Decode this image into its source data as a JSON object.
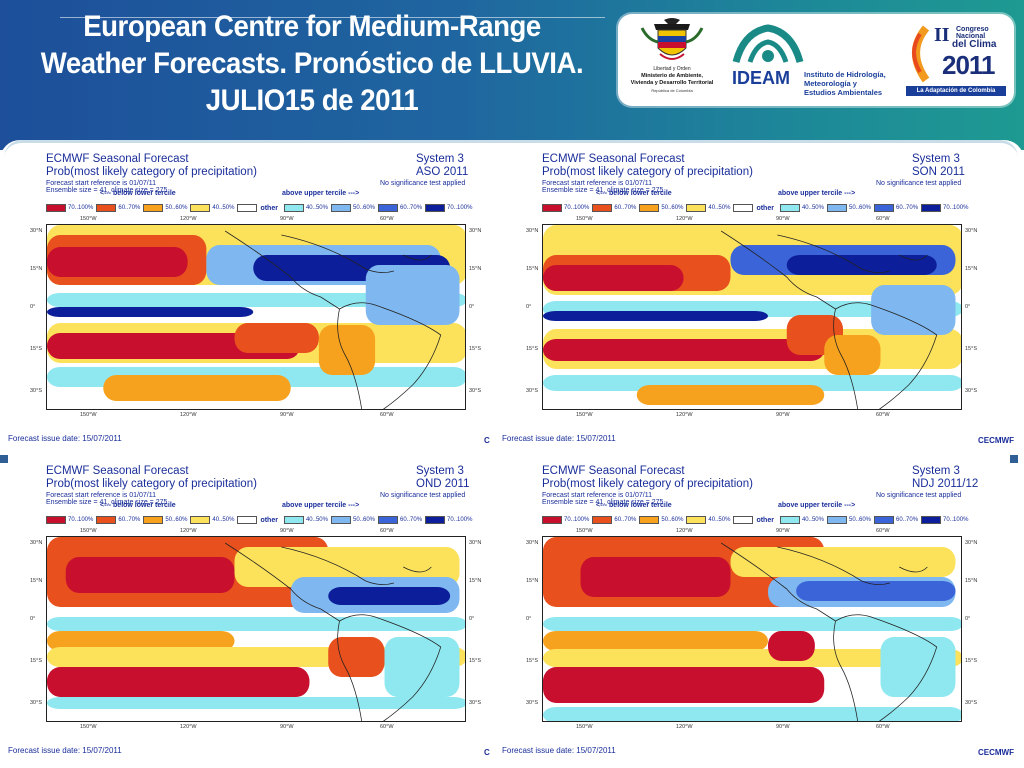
{
  "header": {
    "title_lines": [
      "European Centre for Medium-Range",
      "Weather Forecasts. Pronóstico de LLUVIA.",
      "JULIO15 de 2011"
    ]
  },
  "logos": {
    "colombia_caption_1": "Libertad y Orden",
    "colombia_caption_2": "Ministerio de Ambiente,",
    "colombia_caption_3": "Vivienda y Desarrollo Territorial",
    "colombia_caption_4": "República de Colombia",
    "ideam_name": "IDEAM",
    "ideam_sub_1": "Instituto de Hidrología,",
    "ideam_sub_2": "Meteorología y",
    "ideam_sub_3": "Estudios Ambientales",
    "congreso_roman": "II",
    "congreso_1": "Congreso",
    "congreso_2": "Nacional",
    "congreso_3": "del Clima",
    "congreso_year": "2011",
    "congreso_tag": "La Adaptación de Colombia"
  },
  "panels": [
    {
      "title": "ECMWF Seasonal Forecast",
      "system": "System 3",
      "subtitle": "Prob(most likely category of precipitation)",
      "period": "ASO 2011",
      "start": "Forecast start reference is 01/07/11",
      "ensemble": "Ensemble size = 41, climate size = 275",
      "significance": "No significance test applied",
      "issue": "Forecast issue date: 15/07/2011",
      "logo": "C"
    },
    {
      "title": "ECMWF Seasonal Forecast",
      "system": "System 3",
      "subtitle": "Prob(most likely category of precipitation)",
      "period": "SON 2011",
      "start": "Forecast start reference is 01/07/11",
      "ensemble": "Ensemble size = 41, climate size = 275",
      "significance": "No significance test applied",
      "issue": "Forecast issue date: 15/07/2011",
      "logo": "CECMWF"
    },
    {
      "title": "ECMWF Seasonal Forecast",
      "system": "System 3",
      "subtitle": "Prob(most likely category of precipitation)",
      "period": "OND 2011",
      "start": "Forecast start reference is 01/07/11",
      "ensemble": "Ensemble size = 41, climate size = 275",
      "significance": "No significance test applied",
      "issue": "Forecast issue date: 15/07/2011",
      "logo": "C"
    },
    {
      "title": "ECMWF Seasonal Forecast",
      "system": "System 3",
      "subtitle": "Prob(most likely category of precipitation)",
      "period": "NDJ 2011/12",
      "start": "Forecast start reference is 01/07/11",
      "ensemble": "Ensemble size = 41, climate size = 275",
      "significance": "No significance test applied",
      "issue": "Forecast issue date: 15/07/2011",
      "logo": "CECMWF"
    }
  ],
  "legend": {
    "below_label": "<--- below lower tercile",
    "above_label": "above upper tercile --->",
    "other_label": "other",
    "below": [
      {
        "label": "70..100%",
        "color": "#c8102e"
      },
      {
        "label": "60..70%",
        "color": "#e8501e"
      },
      {
        "label": "50..60%",
        "color": "#f6a21e"
      },
      {
        "label": "40..50%",
        "color": "#fce25a"
      }
    ],
    "other_color": "#ffffff",
    "above": [
      {
        "label": "40..50%",
        "color": "#8fe8f0"
      },
      {
        "label": "50..60%",
        "color": "#7fb8f0"
      },
      {
        "label": "60..70%",
        "color": "#3a64d8"
      },
      {
        "label": "70..100%",
        "color": "#0c1e9a"
      }
    ]
  },
  "axes": {
    "lon_ticks": [
      "150°W",
      "120°W",
      "90°W",
      "60°W"
    ],
    "lat_ticks": [
      "30°N",
      "15°N",
      "0°",
      "15°S",
      "30°S"
    ]
  }
}
